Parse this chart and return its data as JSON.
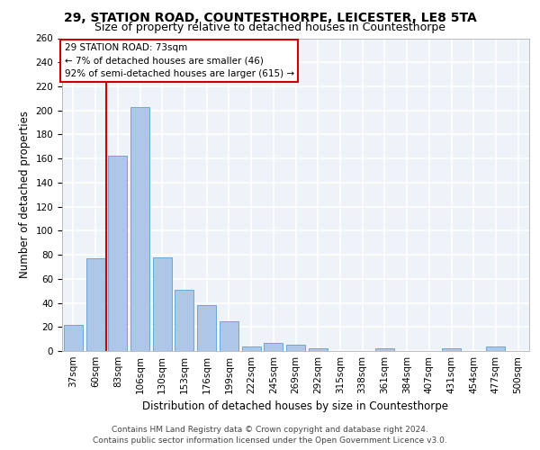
{
  "title": "29, STATION ROAD, COUNTESTHORPE, LEICESTER, LE8 5TA",
  "subtitle": "Size of property relative to detached houses in Countesthorpe",
  "xlabel": "Distribution of detached houses by size in Countesthorpe",
  "ylabel": "Number of detached properties",
  "footer_line1": "Contains HM Land Registry data © Crown copyright and database right 2024.",
  "footer_line2": "Contains public sector information licensed under the Open Government Licence v3.0.",
  "annotation_line1": "29 STATION ROAD: 73sqm",
  "annotation_line2": "← 7% of detached houses are smaller (46)",
  "annotation_line3": "92% of semi-detached houses are larger (615) →",
  "categories": [
    "37sqm",
    "60sqm",
    "83sqm",
    "106sqm",
    "130sqm",
    "153sqm",
    "176sqm",
    "199sqm",
    "222sqm",
    "245sqm",
    "269sqm",
    "292sqm",
    "315sqm",
    "338sqm",
    "361sqm",
    "384sqm",
    "407sqm",
    "431sqm",
    "454sqm",
    "477sqm",
    "500sqm"
  ],
  "values": [
    22,
    77,
    162,
    203,
    78,
    51,
    38,
    25,
    4,
    7,
    5,
    2,
    0,
    0,
    2,
    0,
    0,
    2,
    0,
    4,
    0
  ],
  "bar_color": "#aec6e8",
  "bar_edge_color": "#5a9fd4",
  "vline_color": "#cc0000",
  "annotation_box_color": "#cc0000",
  "ylim": [
    0,
    260
  ],
  "yticks": [
    0,
    20,
    40,
    60,
    80,
    100,
    120,
    140,
    160,
    180,
    200,
    220,
    240,
    260
  ],
  "background_color": "#eef2f9",
  "grid_color": "#ffffff",
  "title_fontsize": 10,
  "subtitle_fontsize": 9,
  "xlabel_fontsize": 8.5,
  "ylabel_fontsize": 8.5,
  "tick_fontsize": 7.5,
  "annotation_fontsize": 7.5,
  "footer_fontsize": 6.5
}
